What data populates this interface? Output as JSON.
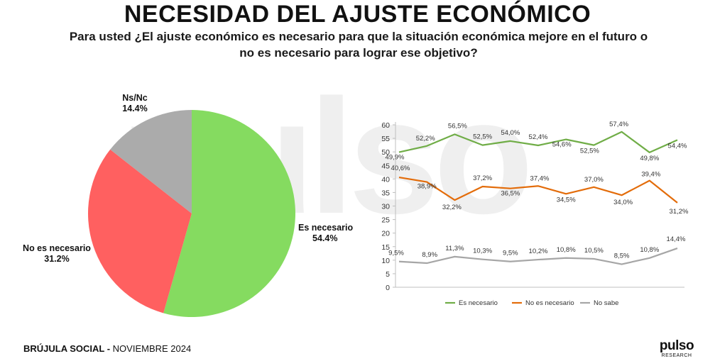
{
  "header": {
    "title": "NECESIDAD DEL AJUSTE ECONÓMICO",
    "subtitle": "Para usted ¿El ajuste económico es necesario para que la situación económica mejore en el futuro o no es necesario para lograr ese objetivo?"
  },
  "footer": {
    "brand": "BRÚJULA SOCIAL - ",
    "date": "NOVIEMBRE 2024"
  },
  "logo": {
    "word": "pulso",
    "sub": "RESEARCH"
  },
  "watermark": {
    "text": "pulso"
  },
  "colors": {
    "green": "#7ed957",
    "red": "#ff5757",
    "gray": "#a6a6a6",
    "line_green": "#70ad47",
    "line_orange": "#e36c0a",
    "line_gray": "#a6a6a6"
  },
  "chart_data": [
    {
      "type": "pie",
      "title": "",
      "slices": [
        {
          "label": "Es necesario",
          "value": 54.4,
          "value_label": "54.4%"
        },
        {
          "label": "No es necesario",
          "value": 31.2,
          "value_label": "31.2%"
        },
        {
          "label": "Ns/Nc",
          "value": 14.4,
          "value_label": "14.4%"
        }
      ]
    },
    {
      "type": "line",
      "title": "",
      "ylim": [
        0,
        60
      ],
      "yticks": [
        0,
        5,
        10,
        15,
        20,
        25,
        30,
        35,
        40,
        45,
        50,
        55,
        60
      ],
      "grid": false,
      "legend": "bottom",
      "series": [
        {
          "name": "Es necesario",
          "values": [
            49.9,
            52.2,
            56.5,
            52.5,
            54.0,
            52.4,
            54.6,
            52.5,
            57.4,
            49.8,
            54.4
          ],
          "labels": [
            "49,9%",
            "52,2%",
            "56,5%",
            "52,5%",
            "54,0%",
            "52,4%",
            "54,6%",
            "52,5%",
            "57,4%",
            "49,8%",
            "54,4%"
          ]
        },
        {
          "name": "No es necesario",
          "values": [
            40.6,
            38.9,
            32.2,
            37.2,
            36.5,
            37.4,
            34.5,
            37.0,
            34.0,
            39.4,
            31.2
          ],
          "labels": [
            "40,6%",
            "38,9%",
            "32,2%",
            "37,2%",
            "36,5%",
            "37,4%",
            "34,5%",
            "37,0%",
            "34,0%",
            "39,4%",
            "31,2%"
          ]
        },
        {
          "name": "No sabe",
          "values": [
            9.5,
            8.9,
            11.3,
            10.3,
            9.5,
            10.2,
            10.8,
            10.5,
            8.5,
            10.8,
            14.4
          ],
          "labels": [
            "9,5%",
            "8,9%",
            "11,3%",
            "10,3%",
            "9,5%",
            "10,2%",
            "10,8%",
            "10,5%",
            "8,5%",
            "10,8%",
            "14,4%"
          ]
        }
      ]
    }
  ]
}
